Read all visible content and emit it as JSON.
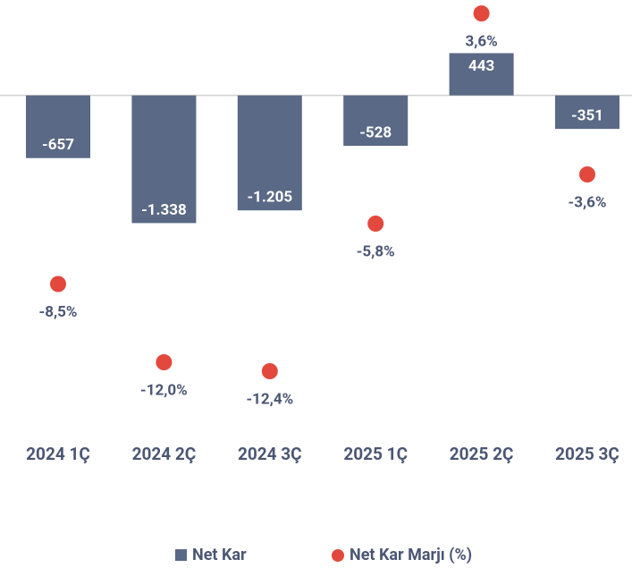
{
  "chart_data": {
    "type": "bar",
    "categories": [
      "2024 1Ç",
      "2024 2Ç",
      "2024 3Ç",
      "2025 1Ç",
      "2025 2Ç",
      "2025 3Ç"
    ],
    "series": [
      {
        "name": "Net Kar",
        "type": "bar",
        "color": "#5a6985",
        "values": [
          -657,
          -1338,
          -1205,
          -528,
          443,
          -351
        ],
        "value_labels": [
          "-657",
          "-1.338",
          "-1.205",
          "-528",
          "443",
          "-351"
        ]
      },
      {
        "name": "Net Kar Marjı (%)",
        "type": "scatter",
        "axis": "y2",
        "color": "#e2483c",
        "values": [
          -8.5,
          -12.0,
          -12.4,
          -5.8,
          3.6,
          -3.6
        ],
        "value_labels": [
          "-8,5%",
          "-12,0%",
          "-12,4%",
          "-5,8%",
          "3,6%",
          "-3,6%"
        ]
      }
    ],
    "ylim": [
      -3500,
      1000
    ],
    "y2lim": [
      -15,
      4.2
    ],
    "legend": "bottom"
  }
}
